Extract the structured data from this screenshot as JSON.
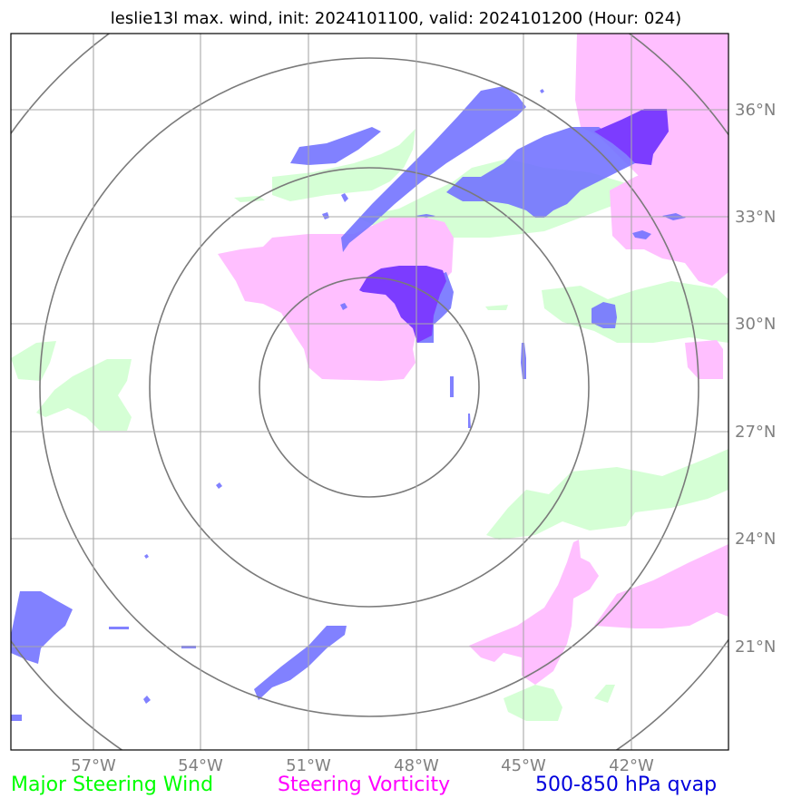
{
  "title": "leslie13l max. wind, init: 2024101100, valid: 2024101200 (Hour: 024)",
  "axes": {
    "lon_ticks": [
      "57°W",
      "54°W",
      "51°W",
      "48°W",
      "45°W",
      "42°W"
    ],
    "lat_ticks": [
      "36°N",
      "33°N",
      "30°N",
      "27°N",
      "24°N",
      "21°N"
    ]
  },
  "legend": [
    {
      "label": "Major Steering Wind",
      "color": "#00ff00"
    },
    {
      "label": "Steering Vorticity",
      "color": "#ff00ff"
    },
    {
      "label": "500-850 hPa qvap",
      "color": "#0000dd"
    }
  ],
  "layer_colors": {
    "wind": "#d5ffd5",
    "vorticity": "#ffbfff",
    "qvap": "#7373ff",
    "qvap_strong": "#7c3cff",
    "grid": "#a8a8a8",
    "range_rings": "#7a7a7a"
  }
}
